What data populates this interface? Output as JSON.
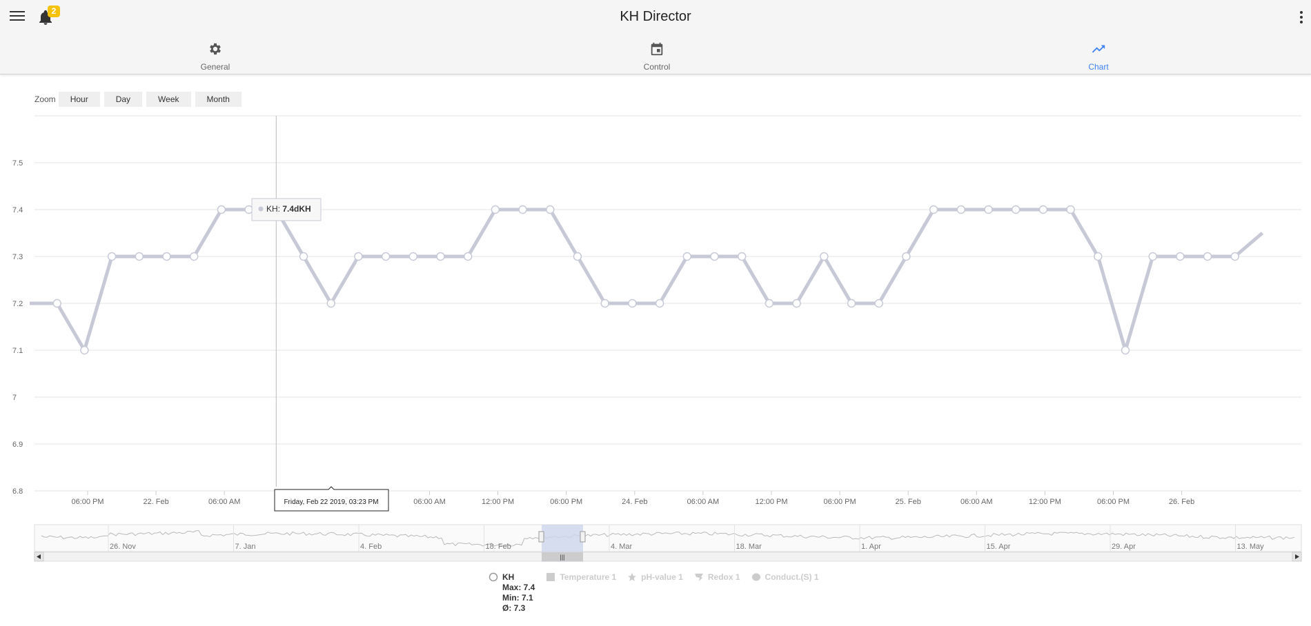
{
  "app": {
    "title": "KH Director",
    "notification_count": "2"
  },
  "tabs": [
    {
      "label": "General",
      "icon": "gear-icon"
    },
    {
      "label": "Control",
      "icon": "calendar-icon"
    },
    {
      "label": "Chart",
      "icon": "trending-up-icon",
      "active": true
    }
  ],
  "zoom": {
    "label": "Zoom",
    "buttons": [
      "Hour",
      "Day",
      "Week",
      "Month"
    ]
  },
  "tooltip": {
    "series": "KH: ",
    "value": "7.4dKH",
    "crosshair_label": "Friday, Feb 22 2019, 03:23 PM"
  },
  "colors": {
    "series": "#c7cad6",
    "accent": "#3f82f4",
    "badge": "#f6c20a",
    "navigator_band": "#ccd6eb"
  },
  "chart_data": {
    "type": "line",
    "ylim": [
      6.8,
      7.6
    ],
    "y_ticks": [
      "6.8",
      "6.9",
      "7",
      "7.1",
      "7.2",
      "7.3",
      "7.4",
      "7.5"
    ],
    "x_ticks": [
      "06:00 PM",
      "22. Feb",
      "06:00 AM",
      "12:00 PM",
      "23. Feb",
      "06:00 AM",
      "12:00 PM",
      "06:00 PM",
      "24. Feb",
      "06:00 AM",
      "12:00 PM",
      "06:00 PM",
      "25. Feb",
      "06:00 AM",
      "12:00 PM",
      "06:00 PM",
      "26. Feb"
    ],
    "series": [
      {
        "name": "KH",
        "values": [
          7.2,
          7.2,
          7.1,
          7.3,
          7.3,
          7.3,
          7.3,
          7.4,
          7.4,
          7.4,
          7.3,
          7.2,
          7.3,
          7.3,
          7.3,
          7.3,
          7.3,
          7.4,
          7.4,
          7.4,
          7.3,
          7.2,
          7.2,
          7.2,
          7.3,
          7.3,
          7.3,
          7.2,
          7.2,
          7.3,
          7.2,
          7.2,
          7.3,
          7.4,
          7.4,
          7.4,
          7.4,
          7.4,
          7.4,
          7.3,
          7.1,
          7.3,
          7.3,
          7.3,
          7.3,
          7.35
        ]
      }
    ],
    "navigator_ticks": [
      "26. Nov",
      "7. Jan",
      "4. Feb",
      "18. Feb",
      "4. Mar",
      "18. Mar",
      "1. Apr",
      "15. Apr",
      "29. Apr",
      "13. May"
    ]
  },
  "legend": [
    {
      "label": "KH",
      "active": true,
      "max": "Max: 7.4",
      "min": "Min: 7.1",
      "avg": "Ø: 7.3"
    },
    {
      "label": "Temperature 1",
      "active": false
    },
    {
      "label": "pH-value 1",
      "active": false
    },
    {
      "label": "Redox 1",
      "active": false
    },
    {
      "label": "Conduct.(S) 1",
      "active": false
    }
  ]
}
